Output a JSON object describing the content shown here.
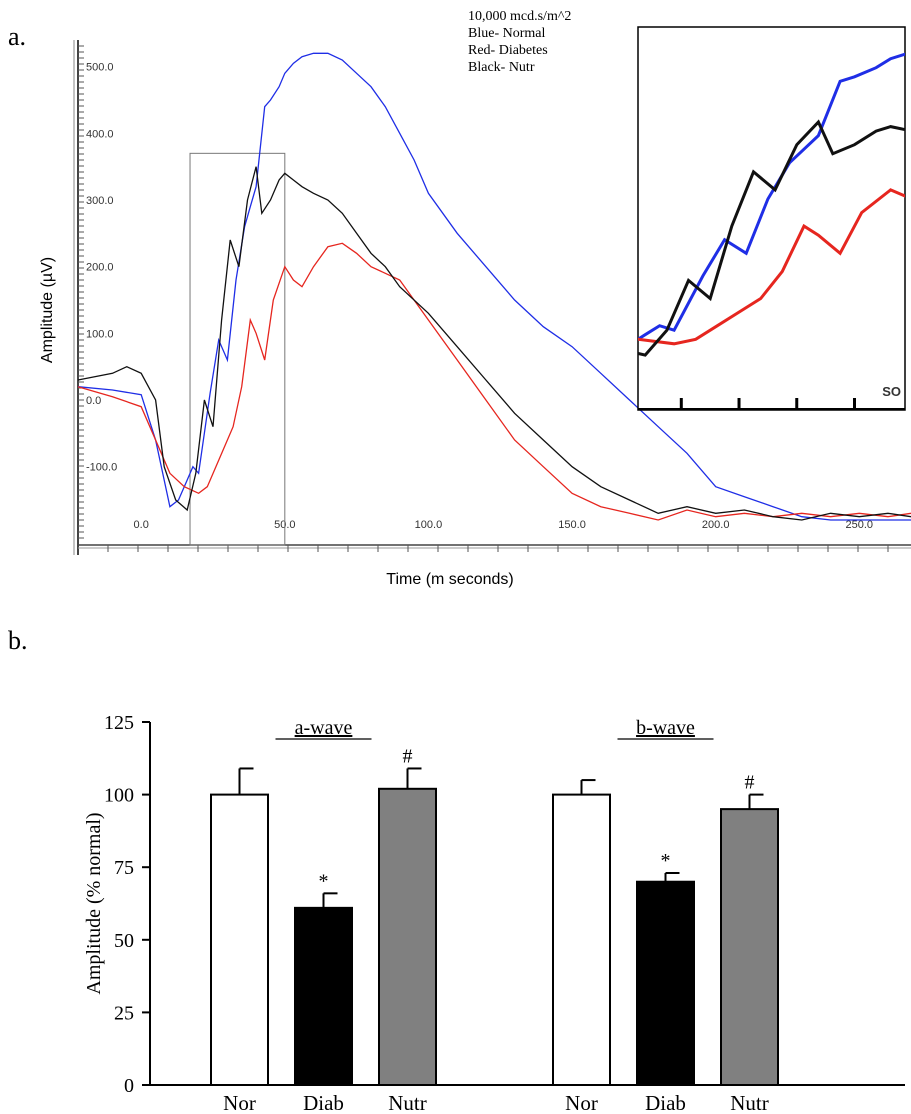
{
  "panel_labels": {
    "a": "a.",
    "b": "b."
  },
  "chart_data": [
    {
      "type": "line",
      "panel": "a",
      "annotation": [
        "10,000 mcd.s/m^2",
        "Blue- Normal",
        "Red- Diabetes",
        "Black- Nutr"
      ],
      "xlabel": "Time (m seconds)",
      "ylabel": "Amplitude (µV)",
      "xlim": [
        -22,
        268
      ],
      "ylim": [
        -210,
        540
      ],
      "x_ticks": [
        "0.0",
        "50.0",
        "100.0",
        "150.0",
        "200.0",
        "250.0"
      ],
      "y_ticks": [
        "-100.0",
        "0.0",
        "100.0",
        "200.0",
        "300.0",
        "400.0",
        "500.0"
      ],
      "colors": {
        "Normal": "#1f2ee6",
        "Diabetes": "#e6261f",
        "Nutr": "#111111"
      },
      "series": [
        {
          "key": "Normal",
          "color": "#1f2ee6",
          "x": [
            -22,
            -10,
            0,
            5,
            10,
            13,
            16,
            18,
            20,
            24,
            27,
            30,
            33,
            36,
            38,
            40,
            43,
            45,
            48,
            50,
            53,
            56,
            60,
            65,
            70,
            75,
            80,
            85,
            90,
            95,
            100,
            110,
            120,
            130,
            140,
            150,
            160,
            170,
            180,
            190,
            200,
            210,
            220,
            230,
            240,
            250,
            260,
            268
          ],
          "y": [
            20,
            15,
            8,
            -60,
            -160,
            -150,
            -120,
            -100,
            -110,
            10,
            90,
            60,
            180,
            260,
            290,
            320,
            440,
            450,
            470,
            490,
            505,
            515,
            520,
            520,
            510,
            490,
            470,
            440,
            400,
            360,
            310,
            250,
            200,
            150,
            110,
            80,
            40,
            0,
            -40,
            -80,
            -130,
            -145,
            -160,
            -175,
            -180,
            -180,
            -180,
            -180
          ]
        },
        {
          "key": "Diabetes",
          "color": "#e6261f",
          "x": [
            -22,
            -10,
            0,
            5,
            10,
            15,
            20,
            23,
            26,
            29,
            32,
            35,
            38,
            40,
            43,
            46,
            50,
            53,
            56,
            60,
            65,
            70,
            75,
            80,
            85,
            90,
            100,
            110,
            120,
            130,
            140,
            150,
            160,
            170,
            180,
            190,
            200,
            210,
            220,
            230,
            240,
            250,
            260,
            268
          ],
          "y": [
            20,
            5,
            -10,
            -60,
            -110,
            -130,
            -140,
            -130,
            -100,
            -70,
            -40,
            20,
            120,
            100,
            60,
            150,
            200,
            180,
            170,
            200,
            230,
            235,
            220,
            200,
            190,
            180,
            120,
            60,
            0,
            -60,
            -100,
            -140,
            -160,
            -170,
            -180,
            -165,
            -175,
            -170,
            -175,
            -170,
            -175,
            -170,
            -175,
            -170
          ]
        },
        {
          "key": "Nutr",
          "color": "#111111",
          "x": [
            -22,
            -10,
            -5,
            0,
            5,
            8,
            12,
            16,
            19,
            22,
            25,
            28,
            31,
            34,
            37,
            40,
            42,
            45,
            48,
            50,
            53,
            56,
            60,
            65,
            70,
            75,
            80,
            85,
            90,
            100,
            110,
            120,
            130,
            140,
            150,
            160,
            170,
            180,
            190,
            200,
            210,
            220,
            230,
            240,
            250,
            260,
            268
          ],
          "y": [
            30,
            40,
            50,
            40,
            0,
            -100,
            -150,
            -165,
            -110,
            0,
            -40,
            120,
            240,
            200,
            300,
            350,
            280,
            300,
            330,
            340,
            330,
            320,
            310,
            300,
            280,
            250,
            220,
            200,
            170,
            130,
            80,
            30,
            -20,
            -60,
            -100,
            -130,
            -150,
            -170,
            -160,
            -170,
            -165,
            -175,
            -180,
            -170,
            -175,
            -170,
            -175
          ]
        }
      ],
      "inset": {
        "label_fragment": "SO"
      }
    },
    {
      "type": "bar",
      "panel": "b",
      "ylabel": "Amplitude (% normal)",
      "ylim": [
        0,
        125
      ],
      "y_ticks": [
        "0",
        "25",
        "50",
        "75",
        "100",
        "125"
      ],
      "groups": [
        {
          "title": "a-wave",
          "bars": [
            {
              "category": "Nor",
              "value": 100,
              "error": 9,
              "color": "#ffffff",
              "marker": ""
            },
            {
              "category": "Diab",
              "value": 61,
              "error": 5,
              "color": "#000000",
              "marker": "*"
            },
            {
              "category": "Nutr",
              "value": 102,
              "error": 7,
              "color": "#808080",
              "marker": "#"
            }
          ]
        },
        {
          "title": "b-wave",
          "bars": [
            {
              "category": "Nor",
              "value": 100,
              "error": 5,
              "color": "#ffffff",
              "marker": ""
            },
            {
              "category": "Diab",
              "value": 70,
              "error": 3,
              "color": "#000000",
              "marker": "*"
            },
            {
              "category": "Nutr",
              "value": 95,
              "error": 5,
              "color": "#808080",
              "marker": "#"
            }
          ]
        }
      ]
    }
  ]
}
